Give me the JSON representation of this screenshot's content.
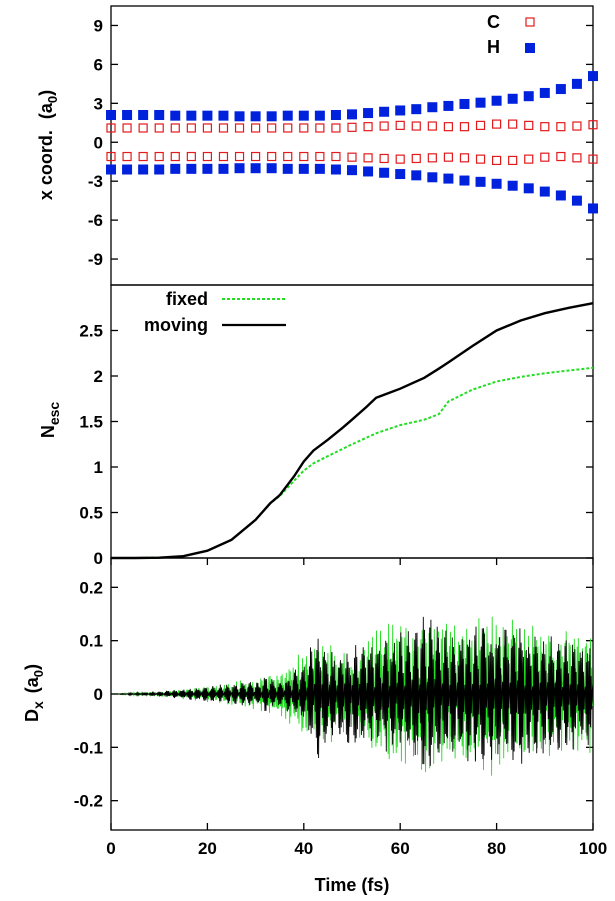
{
  "chart_data": [
    {
      "type": "scatter",
      "panel": "top",
      "ylabel": "x coord.",
      "ylabel_unit": "(a",
      "ylabel_unit_sub": "0",
      "ylabel_unit_close": ")",
      "ylim": [
        -11,
        10.5
      ],
      "yticks": [
        -9,
        -6,
        -3,
        0,
        3,
        6,
        9
      ],
      "xlim": [
        0,
        100
      ],
      "legend_position": "top-right",
      "series": [
        {
          "name": "C",
          "marker": "open-square",
          "color": "#e31a1c",
          "upper_y": [
            1.1,
            1.1,
            1.1,
            1.1,
            1.1,
            1.1,
            1.1,
            1.1,
            1.1,
            1.1,
            1.1,
            1.1,
            1.1,
            1.1,
            1.1,
            1.15,
            1.2,
            1.25,
            1.3,
            1.25,
            1.25,
            1.2,
            1.2,
            1.3,
            1.4,
            1.4,
            1.3,
            1.2,
            1.2,
            1.25,
            1.35
          ],
          "lower_y": [
            -1.1,
            -1.1,
            -1.1,
            -1.1,
            -1.1,
            -1.1,
            -1.1,
            -1.1,
            -1.1,
            -1.1,
            -1.1,
            -1.1,
            -1.1,
            -1.1,
            -1.1,
            -1.15,
            -1.2,
            -1.25,
            -1.3,
            -1.25,
            -1.2,
            -1.15,
            -1.2,
            -1.3,
            -1.4,
            -1.4,
            -1.3,
            -1.15,
            -1.1,
            -1.2,
            -1.3
          ]
        },
        {
          "name": "H",
          "marker": "filled-square",
          "color": "#0022dd",
          "upper_y": [
            2.1,
            2.1,
            2.1,
            2.1,
            2.05,
            2.05,
            2.05,
            2.05,
            2.0,
            2.0,
            2.0,
            2.05,
            2.05,
            2.05,
            2.1,
            2.15,
            2.25,
            2.35,
            2.45,
            2.55,
            2.7,
            2.8,
            2.95,
            3.05,
            3.2,
            3.35,
            3.55,
            3.8,
            4.1,
            4.5,
            5.1
          ],
          "lower_y": [
            -2.1,
            -2.1,
            -2.1,
            -2.1,
            -2.05,
            -2.05,
            -2.05,
            -2.05,
            -2.0,
            -2.0,
            -2.0,
            -2.05,
            -2.05,
            -2.05,
            -2.1,
            -2.15,
            -2.25,
            -2.35,
            -2.45,
            -2.55,
            -2.7,
            -2.8,
            -2.95,
            -3.05,
            -3.2,
            -3.35,
            -3.55,
            -3.8,
            -4.1,
            -4.5,
            -5.1
          ]
        }
      ]
    },
    {
      "type": "line",
      "panel": "middle",
      "ylabel": "N",
      "ylabel_sub": "esc",
      "ylim": [
        0,
        3.0
      ],
      "yticks": [
        0,
        0.5,
        1,
        1.5,
        2,
        2.5
      ],
      "ytick_labels": [
        "0",
        "0.5",
        "1",
        "1.5",
        "2",
        "2.5"
      ],
      "xlim": [
        0,
        100
      ],
      "legend_position": "top-left",
      "series": [
        {
          "name": "fixed",
          "style": "dashed",
          "color": "#22dd22",
          "x": [
            0,
            5,
            10,
            15,
            20,
            25,
            30,
            33,
            35,
            38,
            40,
            42,
            45,
            50,
            55,
            60,
            65,
            68,
            70,
            75,
            80,
            85,
            90,
            95,
            100
          ],
          "y": [
            0,
            0,
            0.003,
            0.02,
            0.08,
            0.2,
            0.42,
            0.6,
            0.68,
            0.85,
            0.96,
            1.04,
            1.12,
            1.25,
            1.37,
            1.46,
            1.52,
            1.58,
            1.72,
            1.85,
            1.94,
            1.99,
            2.03,
            2.06,
            2.09
          ]
        },
        {
          "name": "moving",
          "style": "solid",
          "color": "#000000",
          "x": [
            0,
            5,
            10,
            15,
            20,
            25,
            30,
            33,
            35,
            38,
            40,
            42,
            45,
            48,
            50,
            53,
            55,
            60,
            65,
            68,
            70,
            75,
            80,
            85,
            90,
            95,
            100
          ],
          "y": [
            0,
            0,
            0.003,
            0.02,
            0.08,
            0.2,
            0.42,
            0.6,
            0.69,
            0.9,
            1.06,
            1.18,
            1.3,
            1.43,
            1.52,
            1.66,
            1.76,
            1.86,
            1.98,
            2.08,
            2.15,
            2.33,
            2.5,
            2.61,
            2.69,
            2.75,
            2.8
          ]
        }
      ]
    },
    {
      "type": "line",
      "panel": "bottom",
      "ylabel": "D",
      "ylabel_sub": "x",
      "ylabel_unit": "(a",
      "ylabel_unit_sub": "0",
      "ylabel_unit_close": ")",
      "ylim": [
        -0.255,
        0.255
      ],
      "yticks": [
        -0.2,
        -0.1,
        0,
        0.1,
        0.2
      ],
      "ytick_labels": [
        "-0.2",
        "-0.1",
        "0",
        "0.1",
        "0.2"
      ],
      "xlim": [
        0,
        100
      ],
      "xlabel": "Time (fs)",
      "xticks": [
        0,
        20,
        40,
        60,
        80,
        100
      ],
      "series": [
        {
          "name": "fixed",
          "color": "#22dd22",
          "envelope_x": [
            0,
            10,
            20,
            30,
            32,
            35,
            40,
            45,
            50,
            55,
            60,
            65,
            70,
            75,
            80,
            85,
            90,
            95,
            100
          ],
          "envelope_y": [
            0,
            0.005,
            0.015,
            0.03,
            0.035,
            0.045,
            0.085,
            0.1,
            0.08,
            0.12,
            0.16,
            0.15,
            0.14,
            0.15,
            0.16,
            0.14,
            0.12,
            0.13,
            0.12
          ]
        },
        {
          "name": "moving",
          "color": "#000000",
          "envelope_x": [
            0,
            10,
            20,
            30,
            32,
            35,
            40,
            43,
            45,
            50,
            55,
            60,
            65,
            70,
            75,
            80,
            85,
            90,
            95,
            100
          ],
          "envelope_y": [
            0,
            0.005,
            0.015,
            0.025,
            0.035,
            0.025,
            0.06,
            0.13,
            0.09,
            0.1,
            0.11,
            0.12,
            0.15,
            0.13,
            0.14,
            0.15,
            0.14,
            0.12,
            0.11,
            0.1
          ]
        }
      ]
    }
  ]
}
